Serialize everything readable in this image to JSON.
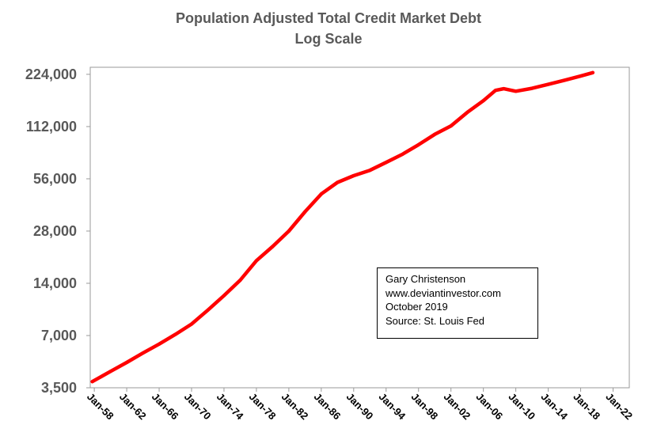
{
  "chart_data": {
    "type": "line",
    "title": "Population Adjusted Total Credit Market Debt",
    "subtitle": "Log Scale",
    "xlabel": "",
    "ylabel": "",
    "y_scale": "log",
    "ylim": [
      3500,
      246000
    ],
    "y_ticks": [
      "224,000",
      "112,000",
      "56,000",
      "28,000",
      "14,000",
      "7,000",
      "3,500"
    ],
    "y_tick_values": [
      224000,
      112000,
      56000,
      28000,
      14000,
      7000,
      3500
    ],
    "x_range": [
      1957.5,
      2024.0
    ],
    "x_ticks": [
      "Jan-58",
      "Jan-62",
      "Jan-66",
      "Jan-70",
      "Jan-74",
      "Jan-78",
      "Jan-82",
      "Jan-86",
      "Jan-90",
      "Jan-94",
      "Jan-98",
      "Jan-02",
      "Jan-06",
      "Jan-10",
      "Jan-14",
      "Jan-18",
      "Jan-22"
    ],
    "x_tick_values": [
      1958,
      1962,
      1966,
      1970,
      1974,
      1978,
      1982,
      1986,
      1990,
      1994,
      1998,
      2002,
      2006,
      2010,
      2014,
      2018,
      2022
    ],
    "grid": false,
    "legend": "none",
    "series_color": "#ff0000",
    "series": [
      {
        "x": [
          1957.75,
          1960,
          1962,
          1964,
          1966,
          1968,
          1970,
          1972,
          1974,
          1976,
          1978,
          1980,
          1982,
          1984,
          1986,
          1988,
          1990,
          1992,
          1994,
          1996,
          1998,
          2000,
          2002,
          2004,
          2006,
          2007.5,
          2008.5,
          2010,
          2012,
          2014,
          2016,
          2018,
          2019.5
        ],
        "y": [
          3800,
          4350,
          4900,
          5550,
          6250,
          7100,
          8150,
          9800,
          11900,
          14600,
          18900,
          22800,
          28000,
          36200,
          45800,
          53400,
          58400,
          62700,
          69600,
          77500,
          88000,
          101000,
          113000,
          135000,
          158000,
          181000,
          185000,
          179000,
          186000,
          196000,
          207000,
          219000,
          229000
        ]
      }
    ]
  },
  "annotation": {
    "line1": "Gary Christenson",
    "line2": "www.deviantinvestor.com",
    "line3": "October 2019",
    "line4": "Source: St. Louis Fed"
  }
}
